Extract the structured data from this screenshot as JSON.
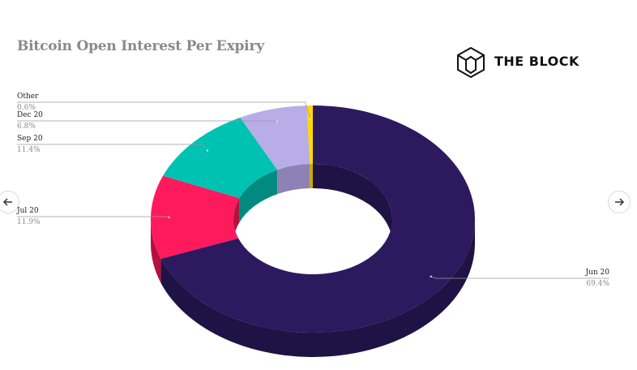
{
  "header": {
    "title": "Bitcoin Open Interest Per Expiry",
    "brand": "THE BLOCK"
  },
  "chart_data": {
    "type": "pie",
    "style": "3d-donut",
    "title": "Bitcoin Open Interest Per Expiry",
    "slices": [
      {
        "name": "Jun 20",
        "value": 69.4,
        "label": "69.4%",
        "color": "#2d1a5e",
        "side_color": "#1f1244"
      },
      {
        "name": "Jul 20",
        "value": 11.9,
        "label": "11.9%",
        "color": "#ff1a5e",
        "side_color": "#b3123f"
      },
      {
        "name": "Sep 20",
        "value": 11.4,
        "label": "11.4%",
        "color": "#00c2b3",
        "side_color": "#008a80"
      },
      {
        "name": "Dec 20",
        "value": 6.8,
        "label": "6.8%",
        "color": "#b8ade6",
        "side_color": "#8c82b5"
      },
      {
        "name": "Other",
        "value": 0.6,
        "label": "0.6%",
        "color": "#ffd700",
        "side_color": "#c9a800"
      }
    ]
  },
  "nav": {
    "prev_icon": "arrow-left-icon",
    "next_icon": "arrow-right-icon"
  }
}
